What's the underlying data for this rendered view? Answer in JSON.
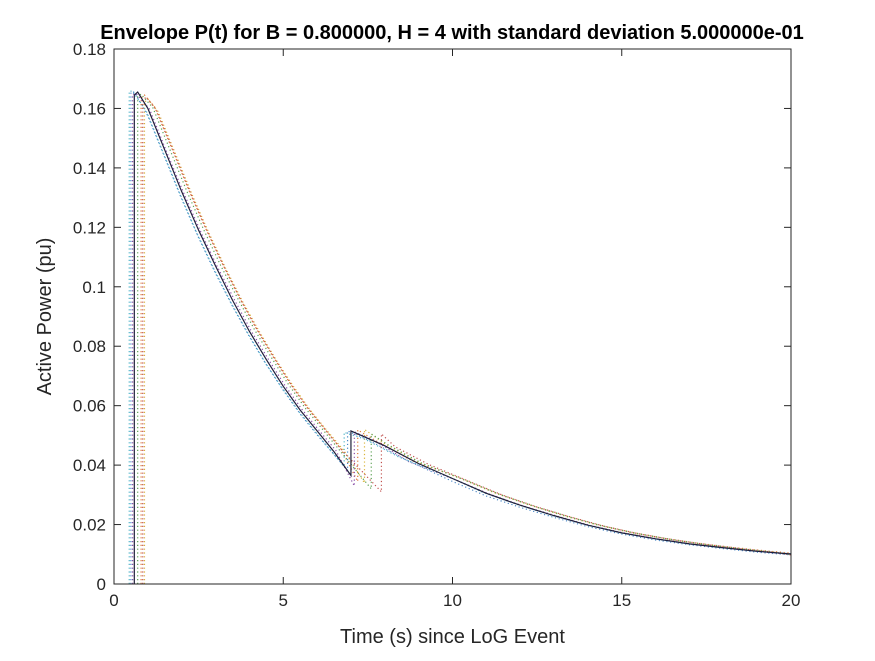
{
  "chart_data": {
    "type": "line",
    "title": "Envelope P(t) for B = 0.800000, H = 4 with standard deviation 5.000000e-01",
    "xlabel": "Time (s) since LoG Event",
    "ylabel": "Active Power (pu)",
    "xlim": [
      0,
      20
    ],
    "ylim": [
      0,
      0.18
    ],
    "xticks": [
      0,
      5,
      10,
      15,
      20
    ],
    "xtick_labels": [
      "0",
      "5",
      "10",
      "15",
      "20"
    ],
    "yticks": [
      0,
      0.02,
      0.04,
      0.06,
      0.08,
      0.1,
      0.12,
      0.14,
      0.16,
      0.18
    ],
    "ytick_labels": [
      "0",
      "0.02",
      "0.04",
      "0.06",
      "0.08",
      "0.1",
      "0.12",
      "0.14",
      "0.16",
      "0.18"
    ],
    "grid": false,
    "box": true,
    "series": [
      {
        "style": "solid",
        "color": "#1f1f3a",
        "x": [
          0.6,
          0.6,
          0.7,
          1.0,
          1.5,
          2.0,
          2.5,
          3.0,
          3.5,
          4.0,
          4.5,
          5.0,
          5.5,
          6.0,
          6.5,
          7.0,
          7.0,
          8.0,
          9.0,
          10.0,
          11.0,
          12.0,
          13.0,
          14.0,
          15.0,
          16.0,
          17.0,
          18.0,
          19.0,
          20.0
        ],
        "y": [
          0,
          0.1645,
          0.1655,
          0.16,
          0.146,
          0.132,
          0.119,
          0.107,
          0.0955,
          0.085,
          0.0755,
          0.0665,
          0.0585,
          0.0515,
          0.0445,
          0.0365,
          0.0515,
          0.0465,
          0.0405,
          0.0355,
          0.0305,
          0.0265,
          0.023,
          0.0198,
          0.0172,
          0.0152,
          0.0135,
          0.0122,
          0.011,
          0.0101
        ]
      },
      {
        "style": "dotted",
        "color": "#4a88c7",
        "x": [
          0.5,
          0.5,
          0.6,
          1.0,
          1.5,
          2.0,
          2.5,
          3.0,
          3.5,
          4.0,
          4.5,
          5.0,
          5.5,
          6.0,
          6.5,
          6.9,
          6.9,
          7.5,
          8.5,
          10.0,
          11.0,
          12.0,
          13.0,
          14.0,
          15.0,
          16.0,
          17.0,
          18.0,
          19.0,
          20.0
        ],
        "y": [
          0,
          0.1655,
          0.1655,
          0.1575,
          0.1435,
          0.1295,
          0.1165,
          0.1045,
          0.0935,
          0.0832,
          0.0738,
          0.0652,
          0.0572,
          0.0502,
          0.0436,
          0.0382,
          0.0515,
          0.0485,
          0.0425,
          0.0345,
          0.0296,
          0.0258,
          0.0224,
          0.0193,
          0.0168,
          0.0148,
          0.0132,
          0.0119,
          0.0107,
          0.0098
        ]
      },
      {
        "style": "dotted",
        "color": "#e07b39",
        "x": [
          0.8,
          0.8,
          0.9,
          1.2,
          1.7,
          2.2,
          2.7,
          3.2,
          3.7,
          4.2,
          4.7,
          5.2,
          5.7,
          6.2,
          6.7,
          7.2,
          7.2,
          7.8,
          8.8,
          10.2,
          11.2,
          12.2,
          13.2,
          14.2,
          15.2,
          16.2,
          17.2,
          18.2,
          19.2,
          20.0
        ],
        "y": [
          0,
          0.1635,
          0.1645,
          0.1605,
          0.1468,
          0.1328,
          0.1198,
          0.1078,
          0.0965,
          0.086,
          0.0765,
          0.0675,
          0.0595,
          0.0525,
          0.0455,
          0.0345,
          0.0518,
          0.0478,
          0.0415,
          0.0358,
          0.031,
          0.0269,
          0.0234,
          0.0202,
          0.0176,
          0.0155,
          0.0138,
          0.0124,
          0.0112,
          0.0104
        ]
      },
      {
        "style": "dotted",
        "color": "#d9b43a",
        "x": [
          0.9,
          0.9,
          1.0,
          1.3,
          1.8,
          2.3,
          2.8,
          3.3,
          3.8,
          4.3,
          4.8,
          5.3,
          5.8,
          6.3,
          6.8,
          7.4,
          7.4,
          8.0,
          9.0,
          10.3,
          11.3,
          12.3,
          13.3,
          14.3,
          15.3,
          16.3,
          17.3,
          18.3,
          19.3,
          20.0
        ],
        "y": [
          0,
          0.162,
          0.1632,
          0.159,
          0.1452,
          0.1312,
          0.1182,
          0.1062,
          0.095,
          0.0848,
          0.0752,
          0.0665,
          0.0585,
          0.0515,
          0.0448,
          0.034,
          0.052,
          0.0472,
          0.041,
          0.0352,
          0.0304,
          0.0265,
          0.0229,
          0.0198,
          0.0172,
          0.0152,
          0.0135,
          0.0121,
          0.0109,
          0.01
        ]
      },
      {
        "style": "dotted",
        "color": "#8a4fa8",
        "x": [
          0.55,
          0.55,
          0.65,
          1.05,
          1.55,
          2.05,
          2.55,
          3.05,
          3.55,
          4.05,
          4.55,
          5.05,
          5.55,
          6.05,
          6.55,
          7.1,
          7.1,
          7.7,
          8.7,
          10.1,
          11.1,
          12.1,
          13.1,
          14.1,
          15.1,
          16.1,
          17.1,
          18.1,
          19.1,
          20.0
        ],
        "y": [
          0,
          0.1648,
          0.165,
          0.1598,
          0.1455,
          0.1318,
          0.1188,
          0.1068,
          0.0958,
          0.0852,
          0.0758,
          0.0668,
          0.0588,
          0.0518,
          0.045,
          0.033,
          0.0512,
          0.0482,
          0.0412,
          0.035,
          0.0302,
          0.0262,
          0.0228,
          0.0196,
          0.0171,
          0.0151,
          0.0134,
          0.0121,
          0.0109,
          0.0099
        ]
      },
      {
        "style": "dotted",
        "color": "#5aa052",
        "x": [
          0.7,
          0.7,
          0.8,
          1.15,
          1.65,
          2.15,
          2.65,
          3.15,
          3.65,
          4.15,
          4.65,
          5.15,
          5.65,
          6.15,
          6.65,
          7.6,
          7.6,
          8.1,
          9.1,
          10.4,
          11.4,
          12.4,
          13.4,
          14.4,
          15.4,
          16.4,
          17.4,
          18.4,
          19.4,
          20.0
        ],
        "y": [
          0,
          0.164,
          0.1648,
          0.1602,
          0.1462,
          0.1322,
          0.1192,
          0.1072,
          0.0962,
          0.0856,
          0.0762,
          0.0672,
          0.0592,
          0.0522,
          0.0452,
          0.032,
          0.0505,
          0.0468,
          0.0406,
          0.0348,
          0.0301,
          0.0262,
          0.0227,
          0.0196,
          0.0171,
          0.0151,
          0.0134,
          0.012,
          0.0108,
          0.0099
        ]
      },
      {
        "style": "dotted",
        "color": "#4fb3c9",
        "x": [
          0.45,
          0.45,
          0.55,
          0.95,
          1.45,
          1.95,
          2.45,
          2.95,
          3.45,
          3.95,
          4.45,
          4.95,
          5.45,
          5.95,
          6.45,
          6.8,
          6.8,
          7.4,
          8.4,
          9.9,
          10.9,
          11.9,
          12.9,
          13.9,
          14.9,
          15.9,
          16.9,
          17.9,
          18.9,
          20.0
        ],
        "y": [
          0,
          0.1658,
          0.1658,
          0.1592,
          0.1452,
          0.1312,
          0.118,
          0.106,
          0.0948,
          0.0845,
          0.0748,
          0.0662,
          0.0582,
          0.0512,
          0.0442,
          0.0395,
          0.051,
          0.0488,
          0.0428,
          0.036,
          0.0308,
          0.0268,
          0.0232,
          0.0201,
          0.0174,
          0.0153,
          0.0136,
          0.0123,
          0.0111,
          0.0102
        ]
      },
      {
        "style": "dotted",
        "color": "#c0504d",
        "x": [
          0.85,
          0.85,
          0.95,
          1.25,
          1.75,
          2.25,
          2.75,
          3.25,
          3.75,
          4.25,
          4.75,
          5.25,
          5.75,
          6.25,
          6.75,
          7.9,
          7.9,
          8.3,
          9.3,
          10.5,
          11.5,
          12.5,
          13.5,
          14.5,
          15.5,
          16.5,
          17.5,
          18.5,
          19.5,
          20.0
        ],
        "y": [
          0,
          0.1628,
          0.1638,
          0.1595,
          0.1458,
          0.1318,
          0.1188,
          0.1068,
          0.0955,
          0.0852,
          0.0758,
          0.0668,
          0.0588,
          0.0518,
          0.0448,
          0.031,
          0.0505,
          0.0462,
          0.0402,
          0.0345,
          0.0298,
          0.0259,
          0.0225,
          0.0194,
          0.0169,
          0.0149,
          0.0133,
          0.0119,
          0.0107,
          0.0098
        ]
      }
    ]
  }
}
